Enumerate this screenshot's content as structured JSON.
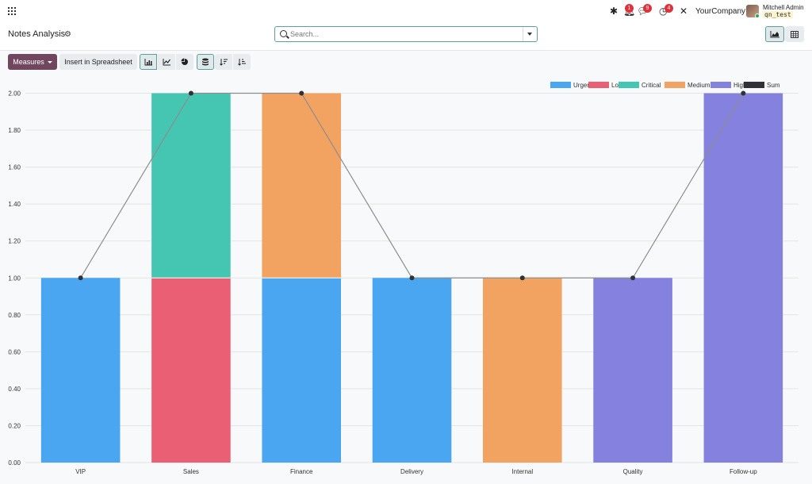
{
  "topbar": {
    "badges": {
      "activity": "1",
      "messages": "9",
      "clock": "4"
    },
    "company": "YourCompany",
    "user_name": "Mitchell Admin",
    "db_name": "qn_test"
  },
  "control": {
    "title": "Notes Analysis",
    "search_placeholder": "Search..."
  },
  "actions": {
    "measures_label": "Measures",
    "insert_label": "Insert in Spreadsheet"
  },
  "colors": {
    "Urgent": "#4ba6f2",
    "Low": "#ea5f74",
    "Critical": "#45c6b2",
    "Medium": "#f3a361",
    "High": "#8581de",
    "Sum": "#2f3338",
    "accent": "#71475f"
  },
  "chart_data": {
    "type": "bar",
    "stacked": true,
    "categories": [
      "VIP",
      "Sales",
      "Finance",
      "Delivery",
      "Internal",
      "Quality",
      "Follow-up"
    ],
    "series": [
      {
        "name": "Urgent",
        "values": [
          1,
          0,
          1,
          1,
          0,
          0,
          0
        ]
      },
      {
        "name": "Low",
        "values": [
          0,
          1,
          0,
          0,
          0,
          0,
          0
        ]
      },
      {
        "name": "Critical",
        "values": [
          0,
          1,
          0,
          0,
          0,
          0,
          0
        ]
      },
      {
        "name": "Medium",
        "values": [
          0,
          0,
          1,
          0,
          1,
          0,
          0
        ]
      },
      {
        "name": "High",
        "values": [
          0,
          0,
          0,
          0,
          0,
          1,
          2
        ]
      }
    ],
    "sum": {
      "name": "Sum",
      "type": "line",
      "values": [
        1,
        2,
        2,
        1,
        1,
        1,
        2
      ]
    },
    "yticks": [
      "0.00",
      "0.20",
      "0.40",
      "0.60",
      "0.80",
      "1.00",
      "1.20",
      "1.40",
      "1.60",
      "1.80",
      "2.00"
    ],
    "ylim": [
      0,
      2
    ],
    "grid": true,
    "legend_position": "top-right"
  }
}
